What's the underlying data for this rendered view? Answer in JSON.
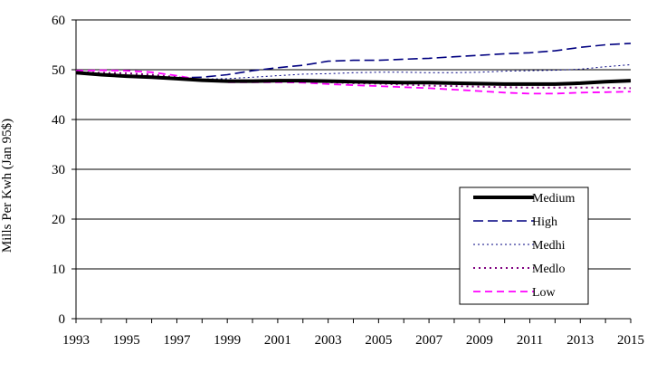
{
  "chart_data": {
    "type": "line",
    "title": "",
    "xlabel": "",
    "ylabel": "Mills Per Kwh (Jan 95$)",
    "xlim": [
      1993,
      2015
    ],
    "ylim": [
      0,
      60
    ],
    "x_ticks": [
      "1993",
      "1995",
      "1997",
      "1999",
      "2001",
      "2003",
      "2005",
      "2007",
      "2009",
      "2011",
      "2013",
      "2015"
    ],
    "y_ticks": [
      "0",
      "10",
      "20",
      "30",
      "40",
      "50",
      "60"
    ],
    "grid": "horizontal",
    "legend_position": "bottom-right",
    "x": [
      1993,
      1994,
      1995,
      1996,
      1997,
      1998,
      1999,
      2000,
      2001,
      2002,
      2003,
      2004,
      2005,
      2006,
      2007,
      2008,
      2009,
      2010,
      2011,
      2012,
      2013,
      2014,
      2015
    ],
    "series": [
      {
        "name": "Medium",
        "color": "#000000",
        "style": "solid-thick",
        "values": [
          49.4,
          49.0,
          48.7,
          48.5,
          48.2,
          47.9,
          47.7,
          47.7,
          47.8,
          47.8,
          47.7,
          47.6,
          47.5,
          47.4,
          47.4,
          47.3,
          47.2,
          47.1,
          47.1,
          47.1,
          47.3,
          47.6,
          47.8
        ]
      },
      {
        "name": "High",
        "color": "#000080",
        "style": "long-dash",
        "values": [
          49.4,
          49.1,
          48.8,
          48.6,
          48.4,
          48.5,
          49.0,
          49.8,
          50.4,
          50.9,
          51.7,
          51.9,
          51.9,
          52.1,
          52.3,
          52.6,
          52.9,
          53.2,
          53.4,
          53.8,
          54.5,
          55.0,
          55.3
        ]
      },
      {
        "name": "Medhi",
        "color": "#000080",
        "style": "fine-dot",
        "values": [
          49.4,
          49.1,
          48.8,
          48.5,
          48.2,
          48.1,
          48.2,
          48.5,
          48.8,
          49.1,
          49.2,
          49.4,
          49.5,
          49.5,
          49.4,
          49.4,
          49.5,
          49.7,
          49.8,
          49.9,
          50.1,
          50.6,
          51.0
        ]
      },
      {
        "name": "Medlo",
        "color": "#800080",
        "style": "dot",
        "values": [
          49.5,
          49.4,
          49.3,
          49.0,
          48.5,
          48.0,
          47.8,
          47.7,
          47.7,
          47.7,
          47.5,
          47.3,
          47.2,
          47.0,
          46.8,
          46.7,
          46.6,
          46.5,
          46.4,
          46.4,
          46.4,
          46.4,
          46.3
        ]
      },
      {
        "name": "Low",
        "color": "#ff00ff",
        "style": "dash",
        "values": [
          49.8,
          49.9,
          49.8,
          49.5,
          48.8,
          47.9,
          47.5,
          47.5,
          47.5,
          47.4,
          47.1,
          46.9,
          46.7,
          46.5,
          46.3,
          46.0,
          45.7,
          45.4,
          45.2,
          45.2,
          45.4,
          45.5,
          45.6
        ]
      }
    ]
  }
}
